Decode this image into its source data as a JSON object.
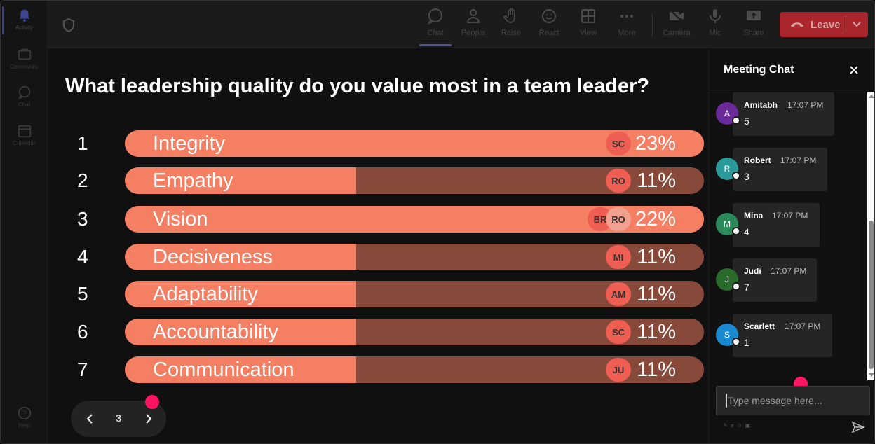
{
  "rail": {
    "items": [
      {
        "label": "Activity",
        "icon": "bell-icon"
      },
      {
        "label": "Community",
        "icon": "community-icon"
      },
      {
        "label": "Chat",
        "icon": "chat-icon"
      },
      {
        "label": "Calendar",
        "icon": "calendar-icon"
      },
      {
        "label": "Help",
        "icon": "help-icon"
      }
    ]
  },
  "toolbar": {
    "chat": "Chat",
    "people": "People",
    "raise": "Raise",
    "react": "React",
    "view": "View",
    "more": "More",
    "camera": "Camera",
    "mic": "Mic",
    "share": "Share",
    "leave": "Leave"
  },
  "poll": {
    "question": "What leadership quality do you value most in a team leader?",
    "options": [
      {
        "num": "1",
        "label": "Integrity",
        "pct": "23%",
        "fill": 1.0,
        "avatars": [
          "SC"
        ]
      },
      {
        "num": "2",
        "label": "Empathy",
        "pct": "11%",
        "fill": 0.5,
        "avatars": [
          "RO"
        ]
      },
      {
        "num": "3",
        "label": "Vision",
        "pct": "22%",
        "fill": 1.0,
        "avatars": [
          "BR",
          "RO"
        ]
      },
      {
        "num": "4",
        "label": "Decisiveness",
        "pct": "11%",
        "fill": 0.5,
        "avatars": [
          "MI"
        ]
      },
      {
        "num": "5",
        "label": "Adaptability",
        "pct": "11%",
        "fill": 0.5,
        "avatars": [
          "AM"
        ]
      },
      {
        "num": "6",
        "label": "Accountability",
        "pct": "11%",
        "fill": 0.5,
        "avatars": [
          "SC"
        ]
      },
      {
        "num": "7",
        "label": "Communication",
        "pct": "11%",
        "fill": 0.5,
        "avatars": [
          "JU"
        ]
      }
    ],
    "page": "3"
  },
  "chat": {
    "title": "Meeting Chat",
    "messages": [
      {
        "initial": "A",
        "name": "Amitabh",
        "time": "17:07 PM",
        "text": "5",
        "color": "#6b2a9a"
      },
      {
        "initial": "R",
        "name": "Robert",
        "time": "17:07 PM",
        "text": "3",
        "color": "#2a9a9a"
      },
      {
        "initial": "M",
        "name": "Mina",
        "time": "17:07 PM",
        "text": "4",
        "color": "#2a8a5a"
      },
      {
        "initial": "J",
        "name": "Judi",
        "time": "17:07 PM",
        "text": "7",
        "color": "#2a6a2a"
      },
      {
        "initial": "S",
        "name": "Scarlett",
        "time": "17:07 PM",
        "text": "1",
        "color": "#1a8ad0"
      }
    ],
    "input_placeholder": "Type message here..."
  },
  "colors": {
    "bar_fill": "#f47f63",
    "bar_track": "#86493a",
    "leave": "#a8262c",
    "pink_dot": "#ff1464"
  }
}
